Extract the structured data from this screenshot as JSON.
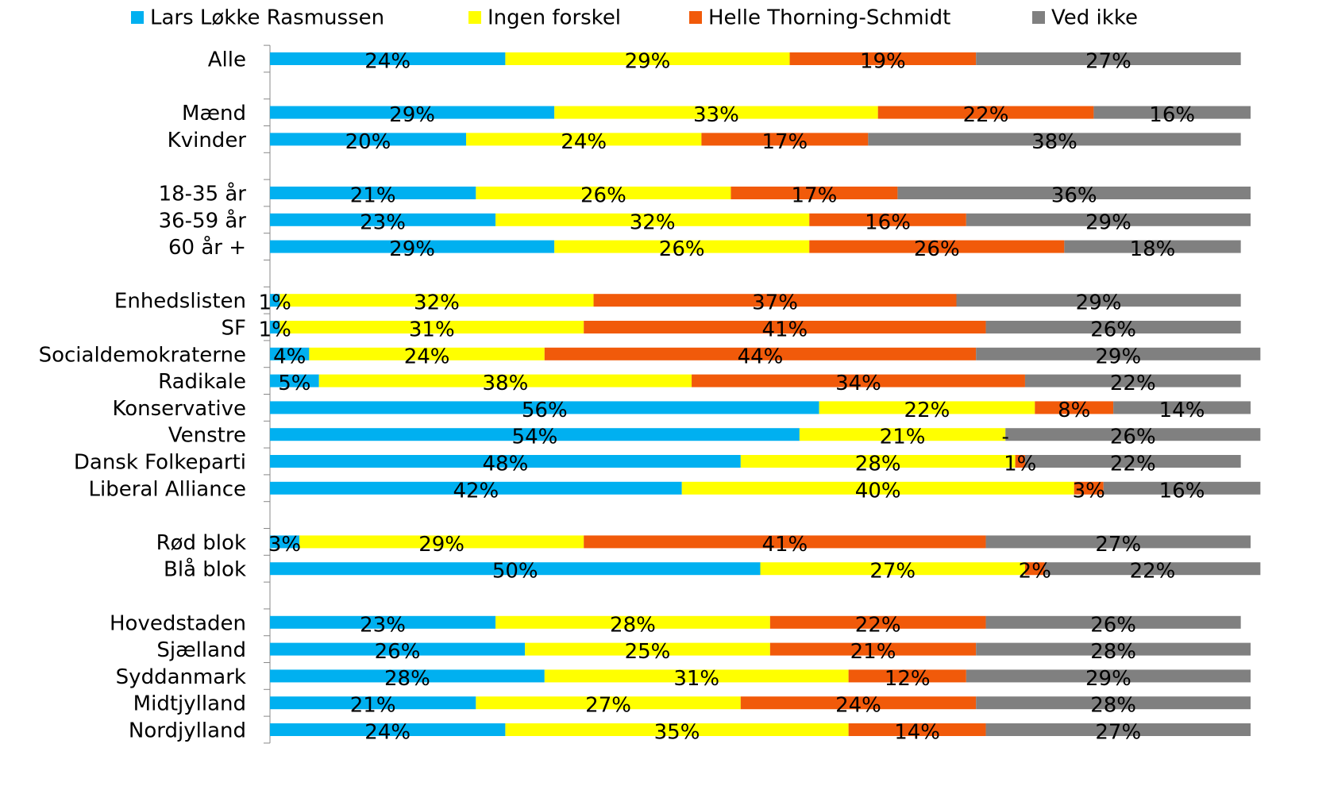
{
  "chart_data": {
    "type": "stacked_bar_horizontal",
    "categories": [
      "Alle",
      null,
      "Mænd",
      "Kvinder",
      null,
      "18-35 år",
      "36-59 år",
      "60 år +",
      null,
      "Enhedslisten",
      "SF",
      "Socialdemokraterne",
      "Radikale",
      "Konservative",
      "Venstre",
      "Dansk Folkeparti",
      "Liberal Alliance",
      null,
      "Rød blok",
      "Blå blok",
      null,
      "Hovedstaden",
      "Sjælland",
      "Syddanmark",
      "Midtjylland",
      "Nordjylland"
    ],
    "xlim": [
      0,
      100
    ],
    "legend": "top",
    "series": [
      {
        "name": "Lars Løkke Rasmussen",
        "color": "#00b0f0",
        "values": [
          24,
          null,
          29,
          20,
          null,
          21,
          23,
          29,
          null,
          1,
          1,
          4,
          5,
          56,
          54,
          48,
          42,
          null,
          3,
          50,
          null,
          23,
          26,
          28,
          21,
          24
        ],
        "value_labels": [
          "24%",
          null,
          "29%",
          "20%",
          null,
          "21%",
          "23%",
          "29%",
          null,
          "1%",
          "1%",
          "4%",
          "5%",
          "56%",
          "54%",
          "48%",
          "42%",
          null,
          "3%",
          "50%",
          null,
          "23%",
          "26%",
          "28%",
          "21%",
          "24%"
        ]
      },
      {
        "name": "Ingen forskel",
        "color": "#ffff00",
        "values": [
          29,
          null,
          33,
          24,
          null,
          26,
          32,
          26,
          null,
          32,
          31,
          24,
          38,
          22,
          21,
          28,
          40,
          null,
          29,
          27,
          null,
          28,
          25,
          31,
          27,
          35
        ],
        "value_labels": [
          "29%",
          null,
          "33%",
          "24%",
          null,
          "26%",
          "32%",
          "26%",
          null,
          "32%",
          "31%",
          "24%",
          "38%",
          "22%",
          "21%",
          "28%",
          "40%",
          null,
          "29%",
          "27%",
          null,
          "28%",
          "25%",
          "31%",
          "27%",
          "35%"
        ]
      },
      {
        "name": "Helle Thorning-Schmidt",
        "color": "#f15a0a",
        "values": [
          19,
          null,
          22,
          17,
          null,
          17,
          16,
          26,
          null,
          37,
          41,
          44,
          34,
          8,
          0,
          1,
          3,
          null,
          41,
          2,
          null,
          22,
          21,
          12,
          24,
          14
        ],
        "value_labels": [
          "19%",
          null,
          "22%",
          "17%",
          null,
          "17%",
          "16%",
          "26%",
          null,
          "37%",
          "41%",
          "44%",
          "34%",
          "8%",
          "-",
          "1%",
          "3%",
          null,
          "41%",
          "2%",
          null,
          "22%",
          "21%",
          "12%",
          "24%",
          "14%"
        ]
      },
      {
        "name": "Ved ikke",
        "color": "#808080",
        "values": [
          27,
          null,
          16,
          38,
          null,
          36,
          29,
          18,
          null,
          29,
          26,
          29,
          22,
          14,
          26,
          22,
          16,
          null,
          27,
          22,
          null,
          26,
          28,
          29,
          28,
          27
        ],
        "value_labels": [
          "27%",
          null,
          "16%",
          "38%",
          null,
          "36%",
          "29%",
          "18%",
          null,
          "29%",
          "26%",
          "29%",
          "22%",
          "14%",
          "26%",
          "22%",
          "16%",
          null,
          "27%",
          "22%",
          null,
          "26%",
          "28%",
          "29%",
          "28%",
          "27%"
        ]
      }
    ]
  }
}
